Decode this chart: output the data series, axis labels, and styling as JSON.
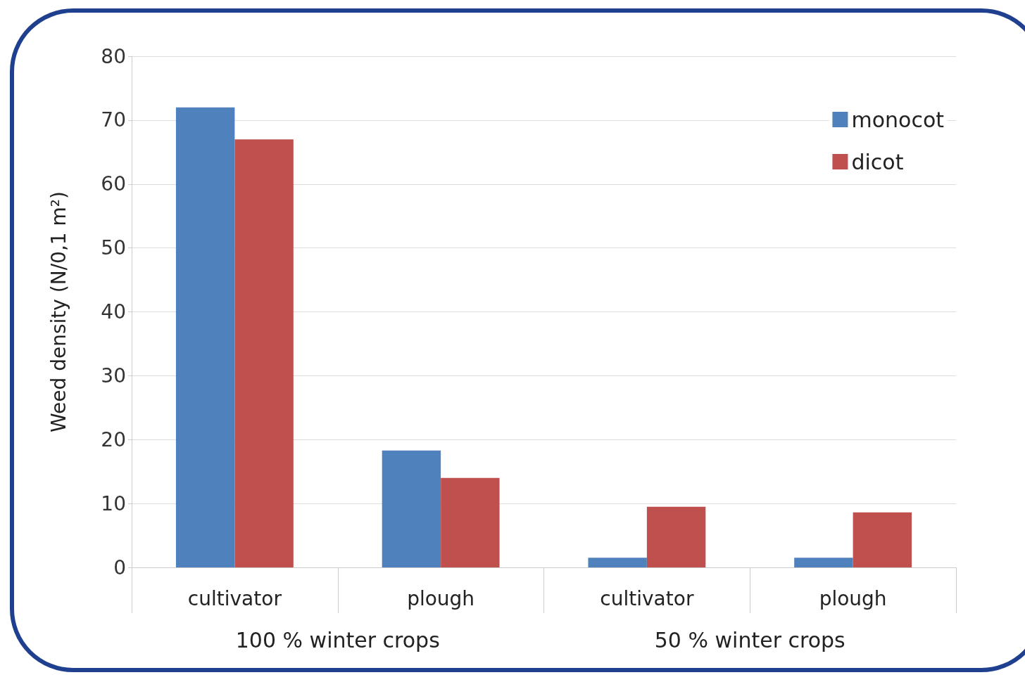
{
  "chart_data": {
    "type": "bar",
    "ylabel": "Weed density (N/0,1 m²)",
    "categories": [
      "cultivator",
      "plough",
      "cultivator",
      "plough"
    ],
    "series": [
      {
        "name": "monocot",
        "color": "#4f81bd",
        "values": [
          72,
          18.3,
          1.5,
          1.5
        ]
      },
      {
        "name": "dicot",
        "color": "#c0504d",
        "values": [
          67,
          14,
          9.5,
          8.6
        ]
      }
    ],
    "annotations": [
      "100 % winter crops",
      "50 % winter crops"
    ],
    "ylim": [
      0,
      80
    ],
    "yticks": [
      0,
      10,
      20,
      30,
      40,
      50,
      60,
      70,
      80
    ],
    "grid": "y",
    "legend": "top right"
  }
}
